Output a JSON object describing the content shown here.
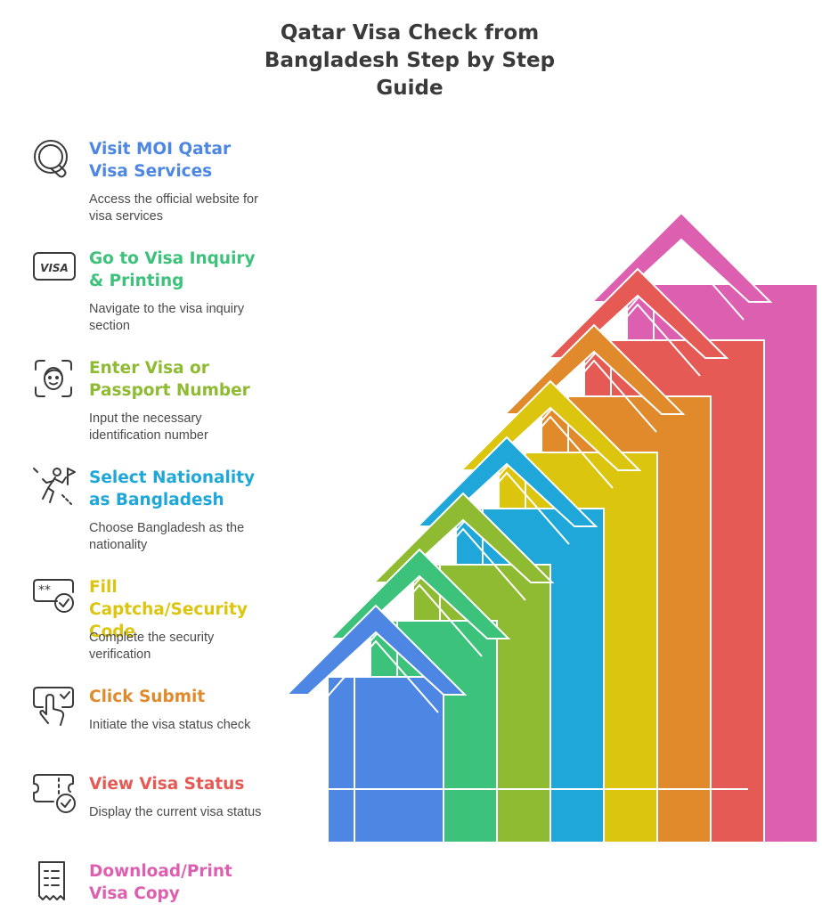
{
  "title": "Qatar Visa Check from Bangladesh Step by Step Guide",
  "steps": [
    {
      "title": "Visit MOI Qatar Visa Services",
      "desc": "Access the official website for visa services",
      "color": "#4d86e3",
      "icon": "magnifier-q-icon"
    },
    {
      "title": "Go to Visa Inquiry & Printing",
      "desc": "Navigate to the visa inquiry section",
      "color": "#3cc27a",
      "icon": "visa-card-icon"
    },
    {
      "title": "Enter Visa or Passport Number",
      "desc": "Input the necessary identification number",
      "color": "#8fbb33",
      "icon": "face-scan-icon"
    },
    {
      "title": "Select Nationality as Bangladesh",
      "desc": "Choose Bangladesh as the nationality",
      "color": "#1ea7d8",
      "icon": "person-flag-icon"
    },
    {
      "title": "Fill Captcha/Security Code",
      "desc": "Complete the security verification",
      "color": "#dcc50f",
      "icon": "password-check-icon"
    },
    {
      "title": "Click Submit",
      "desc": "Initiate the visa status check",
      "color": "#e08a2c",
      "icon": "hand-click-icon"
    },
    {
      "title": "View Visa Status",
      "desc": "Display the current visa status",
      "color": "#e55a55",
      "icon": "ticket-check-icon"
    },
    {
      "title": "Download/Print Visa Copy",
      "desc": "",
      "color": "#dd5fb0",
      "icon": "receipt-icon"
    }
  ]
}
